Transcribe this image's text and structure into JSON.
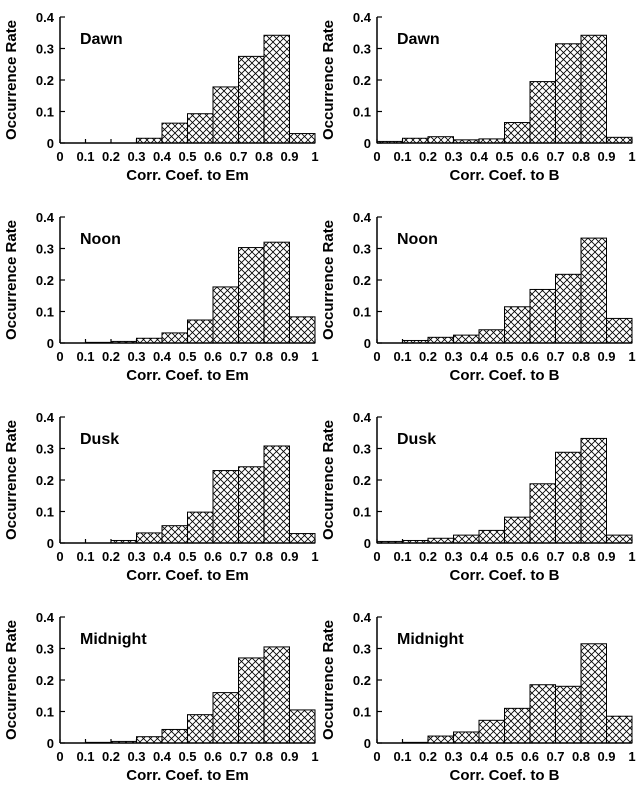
{
  "chart_data": [
    {
      "type": "bar",
      "title": "Dawn",
      "xlabel": "Corr. Coef. to Em",
      "ylabel": "Occurrence Rate",
      "ylim": [
        0,
        0.4
      ],
      "xlim": [
        0,
        1
      ],
      "x_ticks": [
        "0",
        "0.1",
        "0.2",
        "0.3",
        "0.4",
        "0.5",
        "0.6",
        "0.7",
        "0.8",
        "0.9",
        "1"
      ],
      "y_ticks": [
        "0",
        "0.1",
        "0.2",
        "0.3",
        "0.4"
      ],
      "bin_edges": [
        0,
        0.1,
        0.2,
        0.3,
        0.4,
        0.5,
        0.6,
        0.7,
        0.8,
        0.9,
        1
      ],
      "values": [
        0,
        0,
        0,
        0.015,
        0.063,
        0.093,
        0.178,
        0.275,
        0.342,
        0.03
      ]
    },
    {
      "type": "bar",
      "title": "Dawn",
      "xlabel": "Corr. Coef. to B",
      "ylabel": "Occurrence Rate",
      "ylim": [
        0,
        0.4
      ],
      "xlim": [
        0,
        1
      ],
      "x_ticks": [
        "0",
        "0.1",
        "0.2",
        "0.3",
        "0.4",
        "0.5",
        "0.6",
        "0.7",
        "0.8",
        "0.9",
        "1"
      ],
      "y_ticks": [
        "0",
        "0.1",
        "0.2",
        "0.3",
        "0.4"
      ],
      "bin_edges": [
        0,
        0.1,
        0.2,
        0.3,
        0.4,
        0.5,
        0.6,
        0.7,
        0.8,
        0.9,
        1
      ],
      "values": [
        0.005,
        0.015,
        0.02,
        0.01,
        0.013,
        0.065,
        0.195,
        0.315,
        0.342,
        0.018
      ]
    },
    {
      "type": "bar",
      "title": "Noon",
      "xlabel": "Corr. Coef. to Em",
      "ylabel": "Occurrence Rate",
      "ylim": [
        0,
        0.4
      ],
      "xlim": [
        0,
        1
      ],
      "x_ticks": [
        "0",
        "0.1",
        "0.2",
        "0.3",
        "0.4",
        "0.5",
        "0.6",
        "0.7",
        "0.8",
        "0.9",
        "1"
      ],
      "y_ticks": [
        "0",
        "0.1",
        "0.2",
        "0.3",
        "0.4"
      ],
      "bin_edges": [
        0,
        0.1,
        0.2,
        0.3,
        0.4,
        0.5,
        0.6,
        0.7,
        0.8,
        0.9,
        1
      ],
      "values": [
        0,
        0.002,
        0.005,
        0.015,
        0.032,
        0.073,
        0.178,
        0.303,
        0.32,
        0.083
      ]
    },
    {
      "type": "bar",
      "title": "Noon",
      "xlabel": "Corr. Coef. to B",
      "ylabel": "Occurrence Rate",
      "ylim": [
        0,
        0.4
      ],
      "xlim": [
        0,
        1
      ],
      "x_ticks": [
        "0",
        "0.1",
        "0.2",
        "0.3",
        "0.4",
        "0.5",
        "0.6",
        "0.7",
        "0.8",
        "0.9",
        "1"
      ],
      "y_ticks": [
        "0",
        "0.1",
        "0.2",
        "0.3",
        "0.4"
      ],
      "bin_edges": [
        0,
        0.1,
        0.2,
        0.3,
        0.4,
        0.5,
        0.6,
        0.7,
        0.8,
        0.9,
        1
      ],
      "values": [
        0,
        0.008,
        0.018,
        0.025,
        0.042,
        0.115,
        0.17,
        0.218,
        0.333,
        0.078
      ]
    },
    {
      "type": "bar",
      "title": "Dusk",
      "xlabel": "Corr. Coef. to Em",
      "ylabel": "Occurrence Rate",
      "ylim": [
        0,
        0.4
      ],
      "xlim": [
        0,
        1
      ],
      "x_ticks": [
        "0",
        "0.1",
        "0.2",
        "0.3",
        "0.4",
        "0.5",
        "0.6",
        "0.7",
        "0.8",
        "0.9",
        "1"
      ],
      "y_ticks": [
        "0",
        "0.1",
        "0.2",
        "0.3",
        "0.4"
      ],
      "bin_edges": [
        0,
        0.1,
        0.2,
        0.3,
        0.4,
        0.5,
        0.6,
        0.7,
        0.8,
        0.9,
        1
      ],
      "values": [
        0,
        0,
        0.008,
        0.032,
        0.055,
        0.098,
        0.23,
        0.242,
        0.308,
        0.03
      ]
    },
    {
      "type": "bar",
      "title": "Dusk",
      "xlabel": "Corr. Coef. to B",
      "ylabel": "Occurrence Rate",
      "ylim": [
        0,
        0.4
      ],
      "xlim": [
        0,
        1
      ],
      "x_ticks": [
        "0",
        "0.1",
        "0.2",
        "0.3",
        "0.4",
        "0.5",
        "0.6",
        "0.7",
        "0.8",
        "0.9",
        "1"
      ],
      "y_ticks": [
        "0",
        "0.1",
        "0.2",
        "0.3",
        "0.4"
      ],
      "bin_edges": [
        0,
        0.1,
        0.2,
        0.3,
        0.4,
        0.5,
        0.6,
        0.7,
        0.8,
        0.9,
        1
      ],
      "values": [
        0.005,
        0.008,
        0.015,
        0.025,
        0.04,
        0.082,
        0.188,
        0.288,
        0.332,
        0.025
      ]
    },
    {
      "type": "bar",
      "title": "Midnight",
      "xlabel": "Corr. Coef. to Em",
      "ylabel": "Occurrence Rate",
      "ylim": [
        0,
        0.4
      ],
      "xlim": [
        0,
        1
      ],
      "x_ticks": [
        "0",
        "0.1",
        "0.2",
        "0.3",
        "0.4",
        "0.5",
        "0.6",
        "0.7",
        "0.8",
        "0.9",
        "1"
      ],
      "y_ticks": [
        "0",
        "0.1",
        "0.2",
        "0.3",
        "0.4"
      ],
      "bin_edges": [
        0,
        0.1,
        0.2,
        0.3,
        0.4,
        0.5,
        0.6,
        0.7,
        0.8,
        0.9,
        1
      ],
      "values": [
        0,
        0.002,
        0.005,
        0.02,
        0.043,
        0.09,
        0.16,
        0.27,
        0.305,
        0.105
      ]
    },
    {
      "type": "bar",
      "title": "Midnight",
      "xlabel": "Corr. Coef. to B",
      "ylabel": "Occurrence Rate",
      "ylim": [
        0,
        0.4
      ],
      "xlim": [
        0,
        1
      ],
      "x_ticks": [
        "0",
        "0.1",
        "0.2",
        "0.3",
        "0.4",
        "0.5",
        "0.6",
        "0.7",
        "0.8",
        "0.9",
        "1"
      ],
      "y_ticks": [
        "0",
        "0.1",
        "0.2",
        "0.3",
        "0.4"
      ],
      "bin_edges": [
        0,
        0.1,
        0.2,
        0.3,
        0.4,
        0.5,
        0.6,
        0.7,
        0.8,
        0.9,
        1
      ],
      "values": [
        0,
        0.002,
        0.022,
        0.035,
        0.072,
        0.11,
        0.185,
        0.18,
        0.315,
        0.085
      ]
    }
  ]
}
